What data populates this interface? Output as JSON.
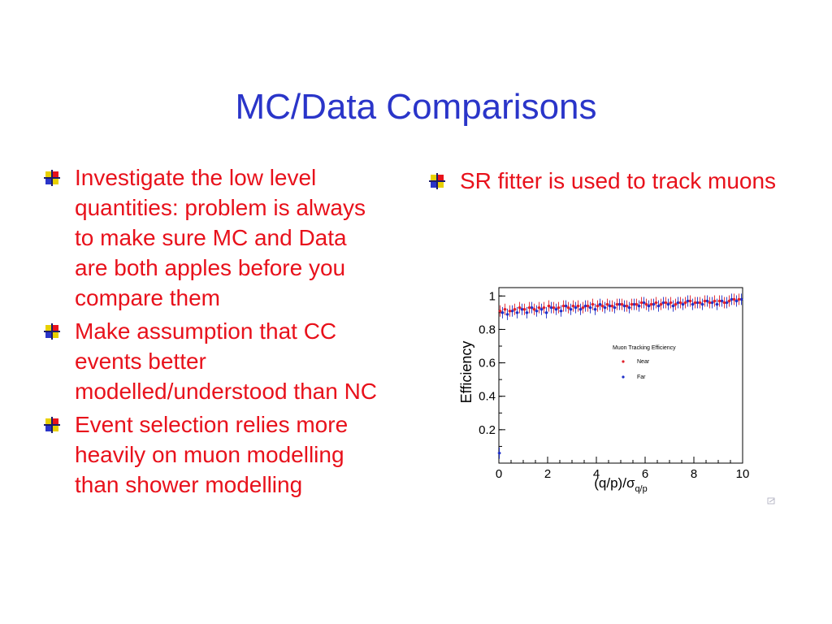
{
  "slide": {
    "title": "MC/Data Comparisons",
    "left_bullets": [
      "Investigate the low level quantities: problem is always to make sure MC and Data are both apples before you compare them",
      "Make assumption that CC events better modelled/understood than NC",
      "Event selection relies more heavily on muon modelling than shower modelling"
    ],
    "right_bullets": [
      "SR fitter is used to track muons"
    ]
  },
  "colors": {
    "title": "#2a35c9",
    "bullet_text": "#e8111b",
    "near": "#e0202a",
    "far": "#1e2fc8"
  },
  "chart_data": {
    "type": "scatter",
    "title": "",
    "xlabel": "(q/p)/σ",
    "xlabel_sub": "q/p",
    "ylabel": "Efficiency",
    "xlim": [
      0,
      10
    ],
    "ylim": [
      0,
      1.05
    ],
    "x_ticks": [
      "0",
      "2",
      "4",
      "6",
      "8",
      "10"
    ],
    "y_ticks": [
      "0.2",
      "0.4",
      "0.6",
      "0.8",
      "1"
    ],
    "legend": {
      "title": "Muon Tracking Efficiency",
      "placement": "center-right",
      "entries": [
        "Near",
        "Far"
      ]
    },
    "series": [
      {
        "name": "Near",
        "x": [
          0.05,
          0.25,
          0.45,
          0.65,
          0.85,
          1.05,
          1.25,
          1.45,
          1.65,
          1.85,
          2.05,
          2.25,
          2.45,
          2.65,
          2.85,
          3.05,
          3.25,
          3.45,
          3.65,
          3.85,
          4.05,
          4.25,
          4.45,
          4.65,
          4.85,
          5.05,
          5.25,
          5.45,
          5.65,
          5.85,
          6.05,
          6.25,
          6.45,
          6.65,
          6.85,
          7.05,
          7.25,
          7.45,
          7.65,
          7.85,
          8.05,
          8.25,
          8.45,
          8.65,
          8.85,
          9.05,
          9.25,
          9.45,
          9.65,
          9.85
        ],
        "y": [
          0.91,
          0.92,
          0.91,
          0.92,
          0.93,
          0.92,
          0.93,
          0.92,
          0.93,
          0.93,
          0.94,
          0.93,
          0.93,
          0.94,
          0.93,
          0.94,
          0.94,
          0.93,
          0.94,
          0.95,
          0.94,
          0.94,
          0.95,
          0.94,
          0.95,
          0.95,
          0.94,
          0.95,
          0.95,
          0.96,
          0.95,
          0.95,
          0.96,
          0.95,
          0.96,
          0.96,
          0.95,
          0.96,
          0.96,
          0.97,
          0.96,
          0.96,
          0.97,
          0.96,
          0.97,
          0.97,
          0.96,
          0.97,
          0.98,
          0.98
        ]
      },
      {
        "name": "Far",
        "x": [
          0.02,
          0.15,
          0.35,
          0.55,
          0.75,
          0.95,
          1.15,
          1.35,
          1.55,
          1.75,
          1.95,
          2.15,
          2.35,
          2.55,
          2.75,
          2.95,
          3.15,
          3.35,
          3.55,
          3.75,
          3.95,
          4.15,
          4.35,
          4.55,
          4.75,
          4.95,
          5.15,
          5.35,
          5.55,
          5.75,
          5.95,
          6.15,
          6.35,
          6.55,
          6.75,
          6.95,
          7.15,
          7.35,
          7.55,
          7.75,
          7.95,
          8.15,
          8.35,
          8.55,
          8.75,
          8.95,
          9.15,
          9.35,
          9.55,
          9.75,
          9.95
        ],
        "y": [
          0.06,
          0.9,
          0.89,
          0.91,
          0.9,
          0.92,
          0.9,
          0.93,
          0.91,
          0.92,
          0.9,
          0.93,
          0.92,
          0.91,
          0.94,
          0.92,
          0.93,
          0.92,
          0.94,
          0.93,
          0.92,
          0.95,
          0.93,
          0.94,
          0.93,
          0.95,
          0.94,
          0.93,
          0.95,
          0.94,
          0.96,
          0.94,
          0.95,
          0.94,
          0.96,
          0.95,
          0.94,
          0.96,
          0.95,
          0.97,
          0.95,
          0.96,
          0.95,
          0.97,
          0.96,
          0.95,
          0.97,
          0.96,
          0.98,
          0.97,
          0.98
        ]
      }
    ]
  }
}
